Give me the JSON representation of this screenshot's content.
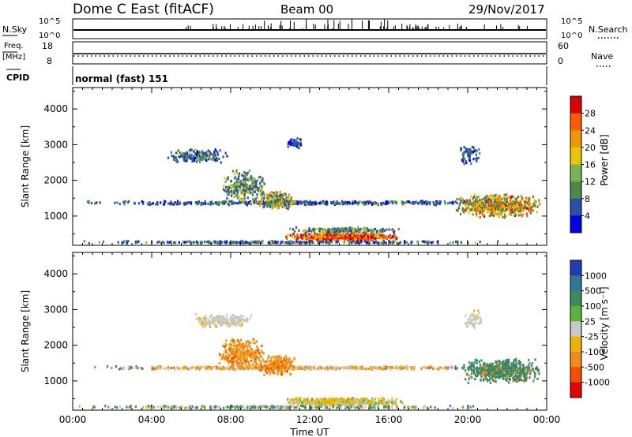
{
  "header": {
    "station": "Dome C East (fitACF)",
    "beam": "Beam 00",
    "date": "29/Nov/2017"
  },
  "strip_nsky": {
    "label": "N.Sky",
    "tick_hi": "10^5",
    "tick_lo": "10^0",
    "right_label": "N.Search",
    "right_tick_hi": "10^5",
    "right_tick_lo": "10^0"
  },
  "strip_freq": {
    "label_line1": "Freq.",
    "label_line2": "[MHz]",
    "tick_hi": "18",
    "tick_lo": "8",
    "right_label": "Nave",
    "right_tick_hi": "60",
    "right_tick_lo": "0"
  },
  "strip_cpid": {
    "label": "CPID",
    "mode": "normal (fast) 151"
  },
  "chart_data": [
    {
      "type": "heatmap",
      "title": "",
      "ylabel": "Slant Range [km]",
      "xlabel": "Time UT",
      "xticks": [
        "00:00",
        "04:00",
        "08:00",
        "12:00",
        "16:00",
        "20:00",
        "00:00"
      ],
      "yticks": [
        "1000",
        "2000",
        "3000",
        "4000"
      ],
      "ylim": [
        180,
        4600
      ],
      "colorbar": {
        "label": "Power [dB]",
        "ticks": [
          "4",
          "8",
          "12",
          "16",
          "20",
          "24",
          "28"
        ],
        "colors": [
          "#0000e6",
          "#2850aa",
          "#4a8a4a",
          "#78b450",
          "#e6c800",
          "#f09600",
          "#ff5a00",
          "#dc0000"
        ]
      },
      "scatter_echo_regions": [
        {
          "t_start": 0.0,
          "t_end": 24.0,
          "range_km": 1300,
          "dominant": "low-power"
        },
        {
          "t_start": 5.5,
          "t_end": 9.5,
          "range_km": 2500,
          "dominant": "low-power"
        },
        {
          "t_start": 10.0,
          "t_end": 17.0,
          "range_km": 400,
          "dominant": "high-power"
        },
        {
          "t_start": 19.5,
          "t_end": 24.0,
          "range_km": 1300,
          "dominant": "mixed"
        }
      ]
    },
    {
      "type": "heatmap",
      "title": "",
      "ylabel": "Slant Range [km]",
      "xlabel": "Time UT",
      "xticks": [
        "00:00",
        "04:00",
        "08:00",
        "12:00",
        "16:00",
        "20:00",
        "00:00"
      ],
      "yticks": [
        "1000",
        "2000",
        "3000",
        "4000"
      ],
      "ylim": [
        180,
        4600
      ],
      "colorbar": {
        "label": "Velocity [m s⁻¹]",
        "ticks": [
          "1000",
          "500",
          "100",
          "25",
          "-25",
          "-100",
          "-500",
          "-1000"
        ],
        "colors": [
          "#1e3cb4",
          "#2d7896",
          "#3c8c5a",
          "#5ab43c",
          "#c8c8c8",
          "#f0b400",
          "#f08c1e",
          "#f05000",
          "#e60000"
        ]
      },
      "scatter_echo_regions": [
        {
          "t_start": 0.0,
          "t_end": 24.0,
          "range_km": 1300,
          "dominant": "ground-scatter"
        },
        {
          "t_start": 6.5,
          "t_end": 11.0,
          "range_km": 1500,
          "dominant": "negative-velocity"
        },
        {
          "t_start": 19.5,
          "t_end": 24.0,
          "range_km": 1300,
          "dominant": "positive-velocity"
        }
      ]
    }
  ]
}
